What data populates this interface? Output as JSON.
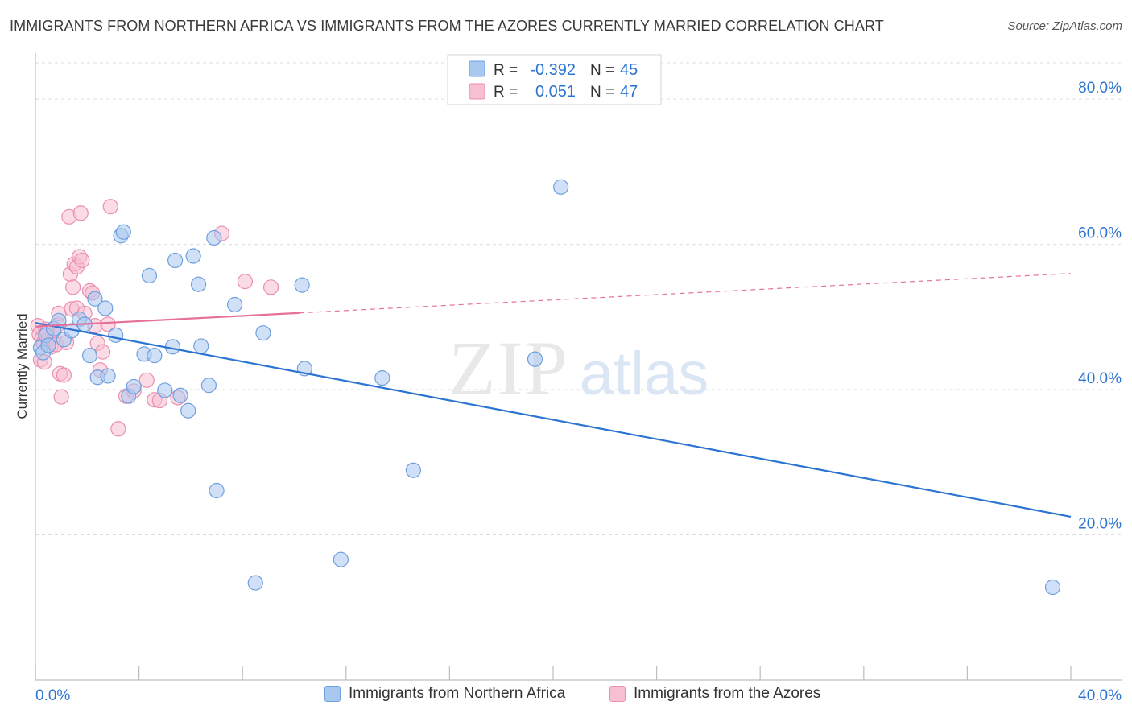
{
  "title": "IMMIGRANTS FROM NORTHERN AFRICA VS IMMIGRANTS FROM THE AZORES CURRENTLY MARRIED CORRELATION CHART",
  "source": "Source: ZipAtlas.com",
  "watermark": {
    "zip": "ZIP",
    "atlas": "atlas"
  },
  "colors": {
    "blue_fill": "#a9c8f0",
    "blue_stroke": "#6f9fe0",
    "blue_line": "#2c74d1",
    "pink_fill": "#f7bfd2",
    "pink_stroke": "#eb8fae",
    "pink_line": "#e5709a",
    "value_text": "#2c74d1",
    "grid": "#dcdcdc"
  },
  "legend": [
    {
      "r_label": "R =",
      "r_value": "-0.392",
      "n_label": "N =",
      "n_value": "45"
    },
    {
      "r_label": "R =",
      "r_value": "0.051",
      "n_label": "N =",
      "n_value": "47"
    }
  ],
  "chart_data": {
    "type": "scatter",
    "xlabel": "",
    "ylabel": "Currently Married",
    "xlim": [
      0,
      40
    ],
    "ylim": [
      0,
      85
    ],
    "x_tick_labels": [
      "0.0%",
      "40.0%"
    ],
    "y_ticks": [
      20,
      40,
      60,
      80
    ],
    "y_tick_labels": [
      "20.0%",
      "40.0%",
      "60.0%",
      "80.0%"
    ],
    "grid": true,
    "legend_position": "top-center",
    "series": [
      {
        "name": "Immigrants from Northern Africa",
        "color": "blue",
        "trend": {
          "x": [
            0,
            40
          ],
          "y": [
            49.2,
            22.5
          ],
          "dashed_after": null
        },
        "points": [
          [
            0.2,
            45.8
          ],
          [
            0.3,
            45.1
          ],
          [
            0.4,
            47.5
          ],
          [
            0.5,
            46.1
          ],
          [
            0.7,
            48.4
          ],
          [
            0.9,
            49.5
          ],
          [
            1.1,
            46.9
          ],
          [
            1.4,
            48.1
          ],
          [
            1.7,
            49.7
          ],
          [
            1.9,
            49.0
          ],
          [
            2.1,
            44.7
          ],
          [
            2.3,
            52.5
          ],
          [
            2.4,
            41.7
          ],
          [
            2.7,
            51.2
          ],
          [
            2.8,
            41.9
          ],
          [
            3.1,
            47.5
          ],
          [
            3.3,
            61.2
          ],
          [
            3.4,
            61.7
          ],
          [
            3.6,
            39.1
          ],
          [
            3.8,
            40.4
          ],
          [
            4.2,
            44.9
          ],
          [
            4.4,
            55.7
          ],
          [
            4.6,
            44.7
          ],
          [
            5.0,
            39.9
          ],
          [
            5.3,
            45.9
          ],
          [
            5.4,
            57.8
          ],
          [
            5.6,
            39.2
          ],
          [
            5.9,
            37.1
          ],
          [
            6.1,
            58.4
          ],
          [
            6.3,
            54.5
          ],
          [
            6.4,
            46.0
          ],
          [
            6.7,
            40.6
          ],
          [
            6.9,
            60.9
          ],
          [
            7.0,
            26.1
          ],
          [
            7.7,
            51.7
          ],
          [
            8.5,
            13.4
          ],
          [
            8.8,
            47.8
          ],
          [
            10.3,
            54.4
          ],
          [
            10.4,
            42.9
          ],
          [
            11.8,
            16.6
          ],
          [
            13.4,
            41.6
          ],
          [
            14.6,
            28.9
          ],
          [
            19.3,
            44.2
          ],
          [
            20.3,
            67.9
          ],
          [
            39.3,
            12.8
          ]
        ]
      },
      {
        "name": "Immigrants from the Azores",
        "color": "pink",
        "trend": {
          "x": [
            0,
            40
          ],
          "y": [
            48.7,
            56.0
          ],
          "dashed_after": 10.2
        },
        "points": [
          [
            0.1,
            48.8
          ],
          [
            0.15,
            47.6
          ],
          [
            0.2,
            44.1
          ],
          [
            0.25,
            47.0
          ],
          [
            0.3,
            46.4
          ],
          [
            0.35,
            43.8
          ],
          [
            0.4,
            48.3
          ],
          [
            0.5,
            46.8
          ],
          [
            0.6,
            45.9
          ],
          [
            0.7,
            48.0
          ],
          [
            0.8,
            46.2
          ],
          [
            0.85,
            48.9
          ],
          [
            0.9,
            50.5
          ],
          [
            0.95,
            42.2
          ],
          [
            1.0,
            39.0
          ],
          [
            1.1,
            42.0
          ],
          [
            1.2,
            46.5
          ],
          [
            1.3,
            63.8
          ],
          [
            1.35,
            55.9
          ],
          [
            1.4,
            51.1
          ],
          [
            1.45,
            54.1
          ],
          [
            1.5,
            57.3
          ],
          [
            1.6,
            56.9
          ],
          [
            1.6,
            51.2
          ],
          [
            1.7,
            58.3
          ],
          [
            1.75,
            64.3
          ],
          [
            1.8,
            57.8
          ],
          [
            1.9,
            50.5
          ],
          [
            2.1,
            53.6
          ],
          [
            2.2,
            53.3
          ],
          [
            2.3,
            48.8
          ],
          [
            2.4,
            46.4
          ],
          [
            2.5,
            42.7
          ],
          [
            2.6,
            45.2
          ],
          [
            2.8,
            49.0
          ],
          [
            2.9,
            65.2
          ],
          [
            3.2,
            34.6
          ],
          [
            3.5,
            39.1
          ],
          [
            3.8,
            39.8
          ],
          [
            4.3,
            41.3
          ],
          [
            4.6,
            38.6
          ],
          [
            4.8,
            38.5
          ],
          [
            5.5,
            38.9
          ],
          [
            7.2,
            61.5
          ],
          [
            8.1,
            54.9
          ],
          [
            9.1,
            54.1
          ],
          [
            0.45,
            47.9
          ]
        ]
      }
    ]
  }
}
